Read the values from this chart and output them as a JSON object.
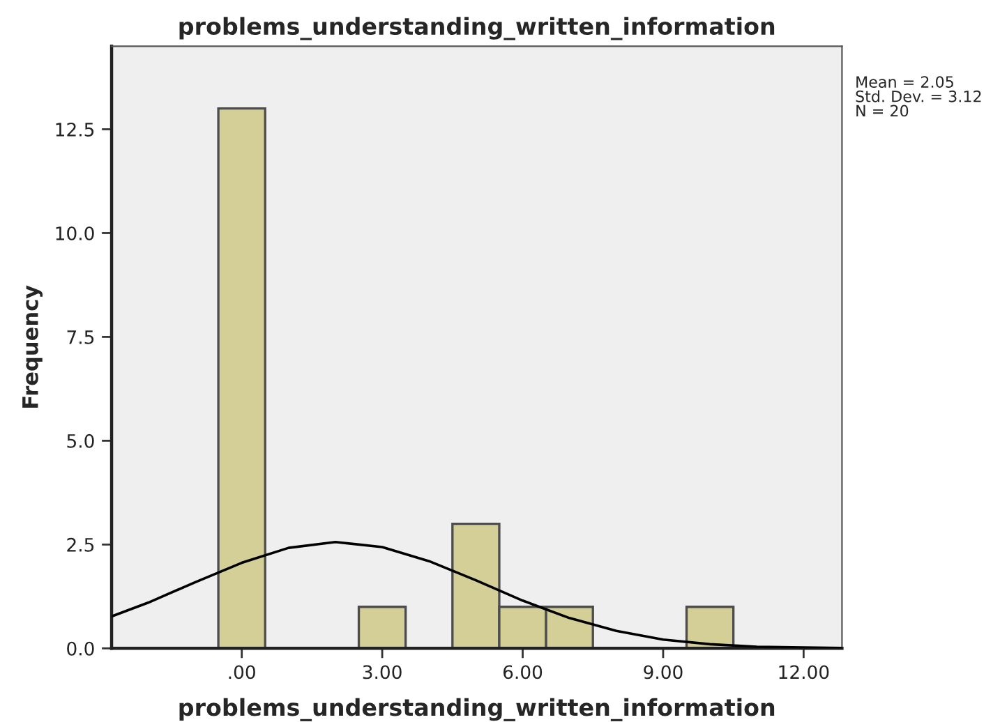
{
  "chart_data": {
    "type": "histogram",
    "title": "problems_understanding_written_information",
    "xlabel": "problems_understanding_written_information",
    "ylabel": "Frequency",
    "bins": [
      -0.5,
      0.5,
      1.5,
      2.5,
      3.5,
      4.5,
      5.5,
      6.5,
      7.5,
      8.5,
      9.5,
      10.5
    ],
    "series": [
      {
        "type": "histogram",
        "color": "#d3cf97",
        "values": [
          13,
          0,
          0,
          1,
          0,
          3,
          1,
          1,
          0,
          0,
          1
        ]
      },
      {
        "type": "line",
        "color": "#000000",
        "x": [
          -2.78,
          -2,
          -1,
          0,
          1,
          2,
          3,
          4,
          5,
          6,
          7,
          8,
          9,
          10,
          11,
          12,
          12.8
        ],
        "values": [
          0.77,
          1.1,
          1.59,
          2.06,
          2.42,
          2.56,
          2.44,
          2.1,
          1.64,
          1.15,
          0.73,
          0.42,
          0.21,
          0.1,
          0.04,
          0.02,
          0.01
        ]
      }
    ],
    "xlim": [
      -2.78,
      12.82
    ],
    "ylim": [
      0,
      14.5
    ],
    "xticks": [
      {
        "value": 0,
        "label": ".00"
      },
      {
        "value": 3,
        "label": "3.00"
      },
      {
        "value": 6,
        "label": "6.00"
      },
      {
        "value": 9,
        "label": "9.00"
      },
      {
        "value": 12,
        "label": "12.00"
      }
    ],
    "yticks": [
      {
        "value": 0,
        "label": "0.0"
      },
      {
        "value": 2.5,
        "label": "2.5"
      },
      {
        "value": 5,
        "label": "5.0"
      },
      {
        "value": 7.5,
        "label": "7.5"
      },
      {
        "value": 10,
        "label": "10.0"
      },
      {
        "value": 12.5,
        "label": "12.5"
      }
    ],
    "annotations": [
      "Mean = 2.05\nStd. Dev. = 3.12\nN = 20"
    ],
    "grid": false,
    "legend": false
  }
}
